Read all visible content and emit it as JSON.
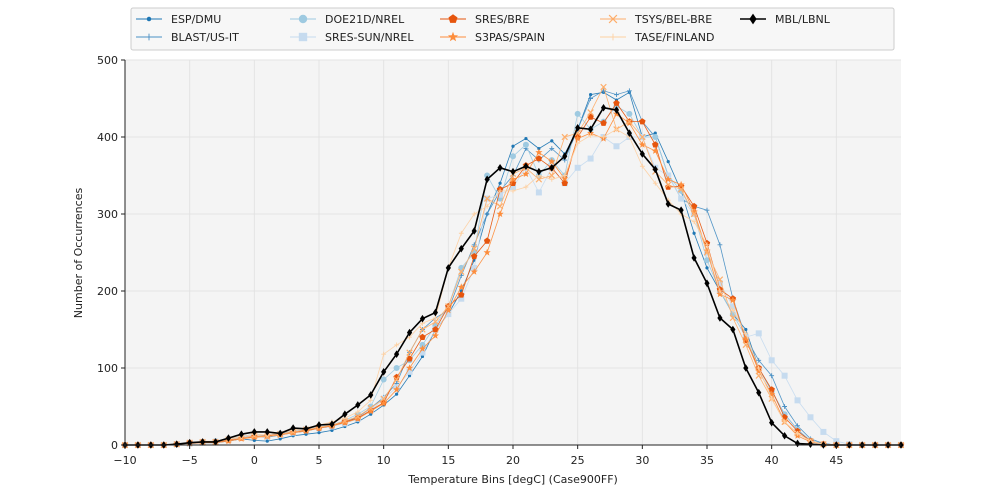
{
  "chart_data": {
    "type": "line",
    "xlabel": "Temperature Bins [degC] (Case900FF)",
    "ylabel": "Number of Occurrences",
    "xlim": [
      -10,
      50
    ],
    "ylim": [
      0,
      500
    ],
    "x_ticks": [
      -10,
      -5,
      0,
      5,
      10,
      15,
      20,
      25,
      30,
      35,
      40,
      45
    ],
    "y_ticks": [
      0,
      100,
      200,
      300,
      400,
      500
    ],
    "grid": true,
    "legend_position": "top",
    "x": [
      -10,
      -9,
      -8,
      -7,
      -6,
      -5,
      -4,
      -3,
      -2,
      -1,
      0,
      1,
      2,
      3,
      4,
      5,
      6,
      7,
      8,
      9,
      10,
      11,
      12,
      13,
      14,
      15,
      16,
      17,
      18,
      19,
      20,
      21,
      22,
      23,
      24,
      25,
      26,
      27,
      28,
      29,
      30,
      31,
      32,
      33,
      34,
      35,
      36,
      37,
      38,
      39,
      40,
      41,
      42,
      43,
      44,
      45,
      46,
      47,
      48,
      49,
      50
    ],
    "series": [
      {
        "name": "ESP/DMU",
        "color": "#1f77b4",
        "marker": "dot",
        "values": [
          0,
          0,
          0,
          0,
          1,
          2,
          3,
          3,
          5,
          8,
          6,
          5,
          8,
          12,
          14,
          16,
          19,
          24,
          30,
          40,
          52,
          66,
          90,
          115,
          150,
          170,
          200,
          240,
          300,
          340,
          388,
          398,
          385,
          395,
          378,
          410,
          455,
          458,
          448,
          458,
          400,
          405,
          368,
          330,
          275,
          230,
          200,
          170,
          150,
          100,
          70,
          40,
          20,
          5,
          2,
          0,
          0,
          0,
          0,
          0,
          0
        ]
      },
      {
        "name": "BLAST/US-IT",
        "color": "#4a90c4",
        "marker": "plus",
        "values": [
          0,
          0,
          0,
          0,
          1,
          3,
          4,
          4,
          7,
          10,
          12,
          10,
          13,
          16,
          18,
          22,
          24,
          30,
          36,
          48,
          62,
          80,
          120,
          150,
          165,
          175,
          220,
          260,
          300,
          330,
          350,
          385,
          370,
          385,
          370,
          410,
          450,
          460,
          455,
          460,
          420,
          400,
          350,
          320,
          310,
          305,
          260,
          190,
          140,
          110,
          90,
          50,
          25,
          8,
          2,
          0,
          0,
          0,
          0,
          0,
          0
        ]
      },
      {
        "name": "DOE21D/NREL",
        "color": "#9ecae1",
        "marker": "circle",
        "values": [
          0,
          0,
          0,
          0,
          1,
          3,
          4,
          5,
          8,
          11,
          14,
          12,
          15,
          18,
          20,
          24,
          26,
          32,
          40,
          50,
          85,
          100,
          110,
          130,
          155,
          180,
          230,
          250,
          350,
          320,
          375,
          390,
          350,
          370,
          350,
          430,
          410,
          420,
          440,
          430,
          400,
          400,
          350,
          330,
          300,
          240,
          200,
          170,
          140,
          100,
          70,
          40,
          20,
          6,
          1,
          0,
          0,
          0,
          0,
          0,
          0
        ]
      },
      {
        "name": "SRES-SUN/NREL",
        "color": "#c6dbef",
        "marker": "square",
        "values": [
          0,
          0,
          0,
          0,
          1,
          2,
          3,
          4,
          7,
          10,
          12,
          11,
          13,
          16,
          19,
          22,
          24,
          28,
          34,
          45,
          60,
          75,
          95,
          120,
          150,
          170,
          190,
          230,
          320,
          325,
          335,
          360,
          328,
          360,
          340,
          360,
          372,
          400,
          388,
          400,
          400,
          360,
          350,
          320,
          300,
          250,
          210,
          180,
          140,
          145,
          110,
          90,
          58,
          36,
          17,
          5,
          1,
          0,
          0,
          0,
          0
        ]
      },
      {
        "name": "SRES/BRE",
        "color": "#e6550d",
        "marker": "pentagon",
        "values": [
          0,
          0,
          0,
          0,
          1,
          3,
          4,
          4,
          6,
          9,
          11,
          12,
          14,
          17,
          19,
          22,
          25,
          30,
          35,
          45,
          55,
          88,
          112,
          140,
          150,
          180,
          195,
          245,
          265,
          332,
          340,
          363,
          372,
          360,
          340,
          400,
          426,
          418,
          444,
          420,
          420,
          390,
          335,
          336,
          310,
          262,
          202,
          190,
          136,
          100,
          72,
          36,
          18,
          5,
          1,
          0,
          0,
          0,
          0,
          0,
          0
        ]
      },
      {
        "name": "S3PAS/SPAIN",
        "color": "#fd8d3c",
        "marker": "star",
        "values": [
          0,
          0,
          0,
          0,
          1,
          2,
          3,
          3,
          5,
          8,
          10,
          11,
          13,
          16,
          18,
          22,
          25,
          29,
          34,
          44,
          54,
          72,
          100,
          125,
          142,
          175,
          205,
          225,
          250,
          300,
          345,
          352,
          380,
          368,
          346,
          398,
          405,
          398,
          430,
          418,
          390,
          382,
          345,
          338,
          303,
          252,
          196,
          188,
          138,
          96,
          66,
          30,
          12,
          4,
          1,
          0,
          0,
          0,
          0,
          0,
          0
        ]
      },
      {
        "name": "TSYS/BEL-BRE",
        "color": "#fdae6b",
        "marker": "x",
        "values": [
          0,
          0,
          0,
          0,
          1,
          3,
          4,
          4,
          7,
          9,
          12,
          11,
          14,
          17,
          20,
          23,
          26,
          31,
          37,
          48,
          60,
          85,
          120,
          150,
          160,
          180,
          225,
          255,
          320,
          310,
          352,
          360,
          345,
          350,
          400,
          405,
          432,
          465,
          410,
          420,
          400,
          355,
          338,
          332,
          300,
          250,
          215,
          165,
          130,
          90,
          60,
          30,
          15,
          5,
          1,
          0,
          0,
          0,
          0,
          0,
          0
        ]
      },
      {
        "name": "TASE/FINLAND",
        "color": "#fdd0a2",
        "marker": "plus",
        "values": [
          0,
          0,
          0,
          0,
          1,
          3,
          5,
          5,
          8,
          11,
          14,
          13,
          16,
          19,
          22,
          26,
          30,
          35,
          43,
          58,
          118,
          130,
          140,
          158,
          165,
          230,
          275,
          300,
          310,
          330,
          330,
          335,
          350,
          345,
          350,
          392,
          402,
          400,
          410,
          400,
          362,
          340,
          318,
          300,
          290,
          260,
          200,
          175,
          145,
          100,
          60,
          30,
          15,
          5,
          1,
          0,
          0,
          0,
          0,
          0,
          0
        ]
      },
      {
        "name": "MBL/LBNL",
        "color": "#000000",
        "marker": "diamond",
        "values": [
          0,
          0,
          0,
          0,
          1,
          3,
          4,
          4,
          9,
          14,
          17,
          17,
          15,
          22,
          21,
          26,
          27,
          40,
          52,
          65,
          95,
          118,
          146,
          164,
          172,
          230,
          255,
          278,
          345,
          360,
          355,
          362,
          355,
          360,
          375,
          412,
          410,
          438,
          435,
          405,
          378,
          358,
          313,
          305,
          243,
          210,
          165,
          150,
          100,
          68,
          29,
          12,
          2,
          1,
          0,
          0,
          0,
          0,
          0,
          0,
          0
        ]
      }
    ]
  }
}
